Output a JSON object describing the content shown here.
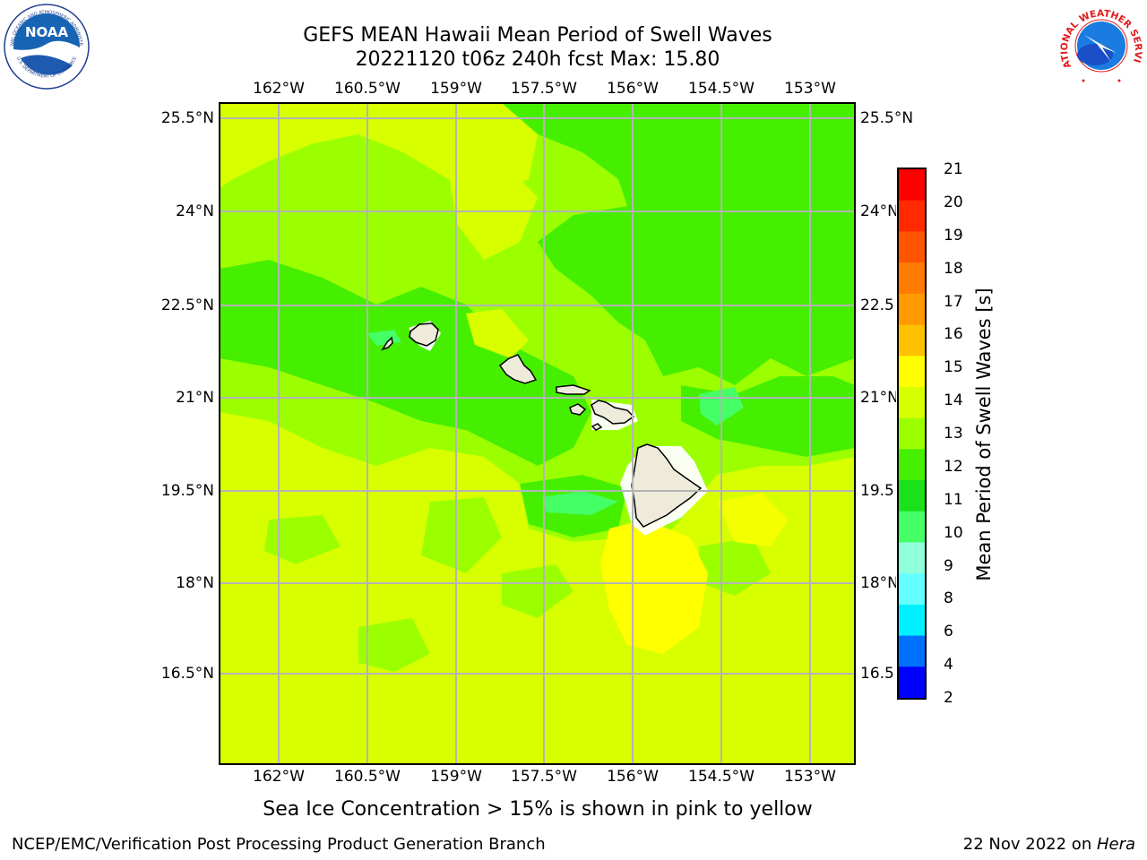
{
  "header": {
    "title_line1": "GEFS MEAN Hawaii Mean Period of Swell Waves",
    "title_line2": "20221120 t06z 240h fcst   Max: 15.80"
  },
  "logos": {
    "left": {
      "name": "noaa-logo",
      "text": "NOAA",
      "ring_top": "NATIONAL OCEANIC AND ATMOSPHERIC ADMINISTRATION",
      "ring_bottom": "U.S. DEPARTMENT OF COMMERCE"
    },
    "right": {
      "name": "nws-logo",
      "text": "NATIONAL WEATHER SERVICE"
    }
  },
  "map": {
    "lon_ticks": [
      "162°W",
      "160.5°W",
      "159°W",
      "157.5°W",
      "156°W",
      "154.5°W",
      "153°W"
    ],
    "lat_ticks": [
      "25.5°N",
      "24°N",
      "22.5°N",
      "21°N",
      "19.5°N",
      "18°N",
      "16.5°N"
    ],
    "lat_ticks_right": [
      "25.5°N",
      "24°N",
      "22.5",
      "21°N",
      "19.5",
      "18°N",
      "16.5"
    ],
    "colors": {
      "land": "#eeebdb",
      "grid": "#b4b4b4",
      "coast": "#000000"
    }
  },
  "colorbar": {
    "label": "Mean Period of Swell Waves [s]",
    "ticks": [
      "21",
      "20",
      "19",
      "18",
      "17",
      "16",
      "15",
      "14",
      "13",
      "12",
      "11",
      "10",
      "9",
      "8",
      "6",
      "4",
      "2"
    ],
    "colors": [
      "#ff0000",
      "#ff2a00",
      "#ff5500",
      "#ff7c00",
      "#ff9a00",
      "#ffc000",
      "#ffff00",
      "#d8ff00",
      "#9cff00",
      "#46ef00",
      "#1ae21a",
      "#44ff66",
      "#90ffdc",
      "#66ffff",
      "#00f0ff",
      "#0070ff",
      "#0000ff"
    ]
  },
  "footer": {
    "ice_note": "Sea Ice Concentration > 15% is shown in pink to yellow",
    "credit_left": "NCEP/EMC/Verification Post Processing Product Generation Branch",
    "credit_right_date": "22 Nov 2022 on ",
    "credit_right_host": "Hera"
  }
}
